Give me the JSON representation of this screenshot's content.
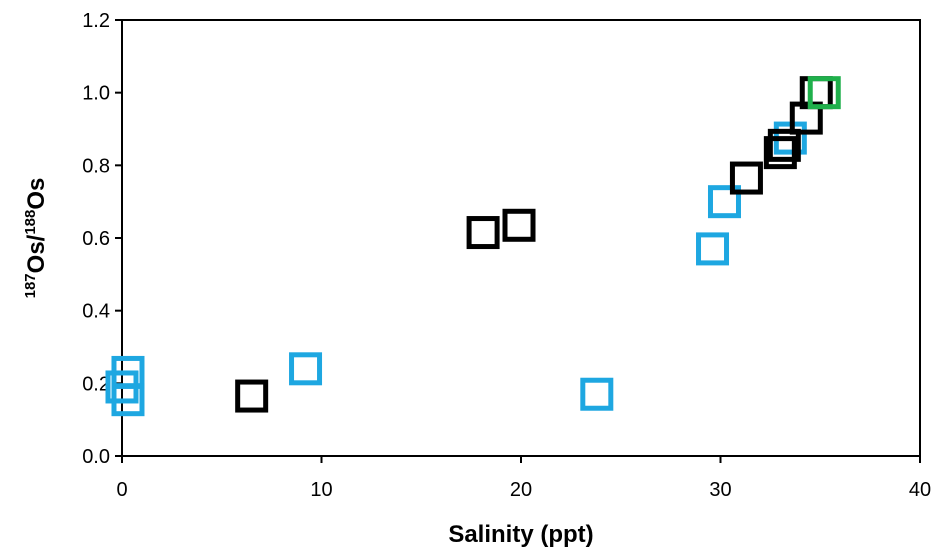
{
  "chart_data": {
    "type": "scatter",
    "title": "",
    "xlabel": "Salinity (ppt)",
    "ylabel": {
      "sup1": "187",
      "main1": "Os/",
      "sup2": "188",
      "main2": "Os"
    },
    "xlim": [
      0,
      40
    ],
    "ylim": [
      0.0,
      1.2
    ],
    "xticks": [
      0,
      10,
      20,
      30,
      40
    ],
    "yticks": [
      0.0,
      0.2,
      0.4,
      0.6,
      0.8,
      1.0,
      1.2
    ],
    "xtick_labels": [
      "0",
      "10",
      "20",
      "30",
      "40"
    ],
    "ytick_labels": [
      "0.0",
      "0.2",
      "0.4",
      "0.6",
      "0.8",
      "1.0",
      "1.2"
    ],
    "grid": false,
    "legend": false,
    "marker": "open-square",
    "series": [
      {
        "color": "#1ea7e1",
        "points": [
          {
            "x": 0.3,
            "y": 0.23
          },
          {
            "x": 0.0,
            "y": 0.19
          },
          {
            "x": 0.3,
            "y": 0.155
          },
          {
            "x": 9.2,
            "y": 0.24
          },
          {
            "x": 23.8,
            "y": 0.17
          },
          {
            "x": 29.6,
            "y": 0.57
          },
          {
            "x": 30.2,
            "y": 0.7
          },
          {
            "x": 33.5,
            "y": 0.875
          }
        ]
      },
      {
        "color": "#000000",
        "points": [
          {
            "x": 6.5,
            "y": 0.165
          },
          {
            "x": 18.1,
            "y": 0.615
          },
          {
            "x": 19.9,
            "y": 0.635
          },
          {
            "x": 31.3,
            "y": 0.765
          },
          {
            "x": 33.0,
            "y": 0.835
          },
          {
            "x": 33.2,
            "y": 0.855
          },
          {
            "x": 34.3,
            "y": 0.93
          },
          {
            "x": 34.8,
            "y": 1.0
          }
        ]
      },
      {
        "color": "#1fb04b",
        "points": [
          {
            "x": 35.2,
            "y": 1.0
          }
        ]
      }
    ]
  }
}
